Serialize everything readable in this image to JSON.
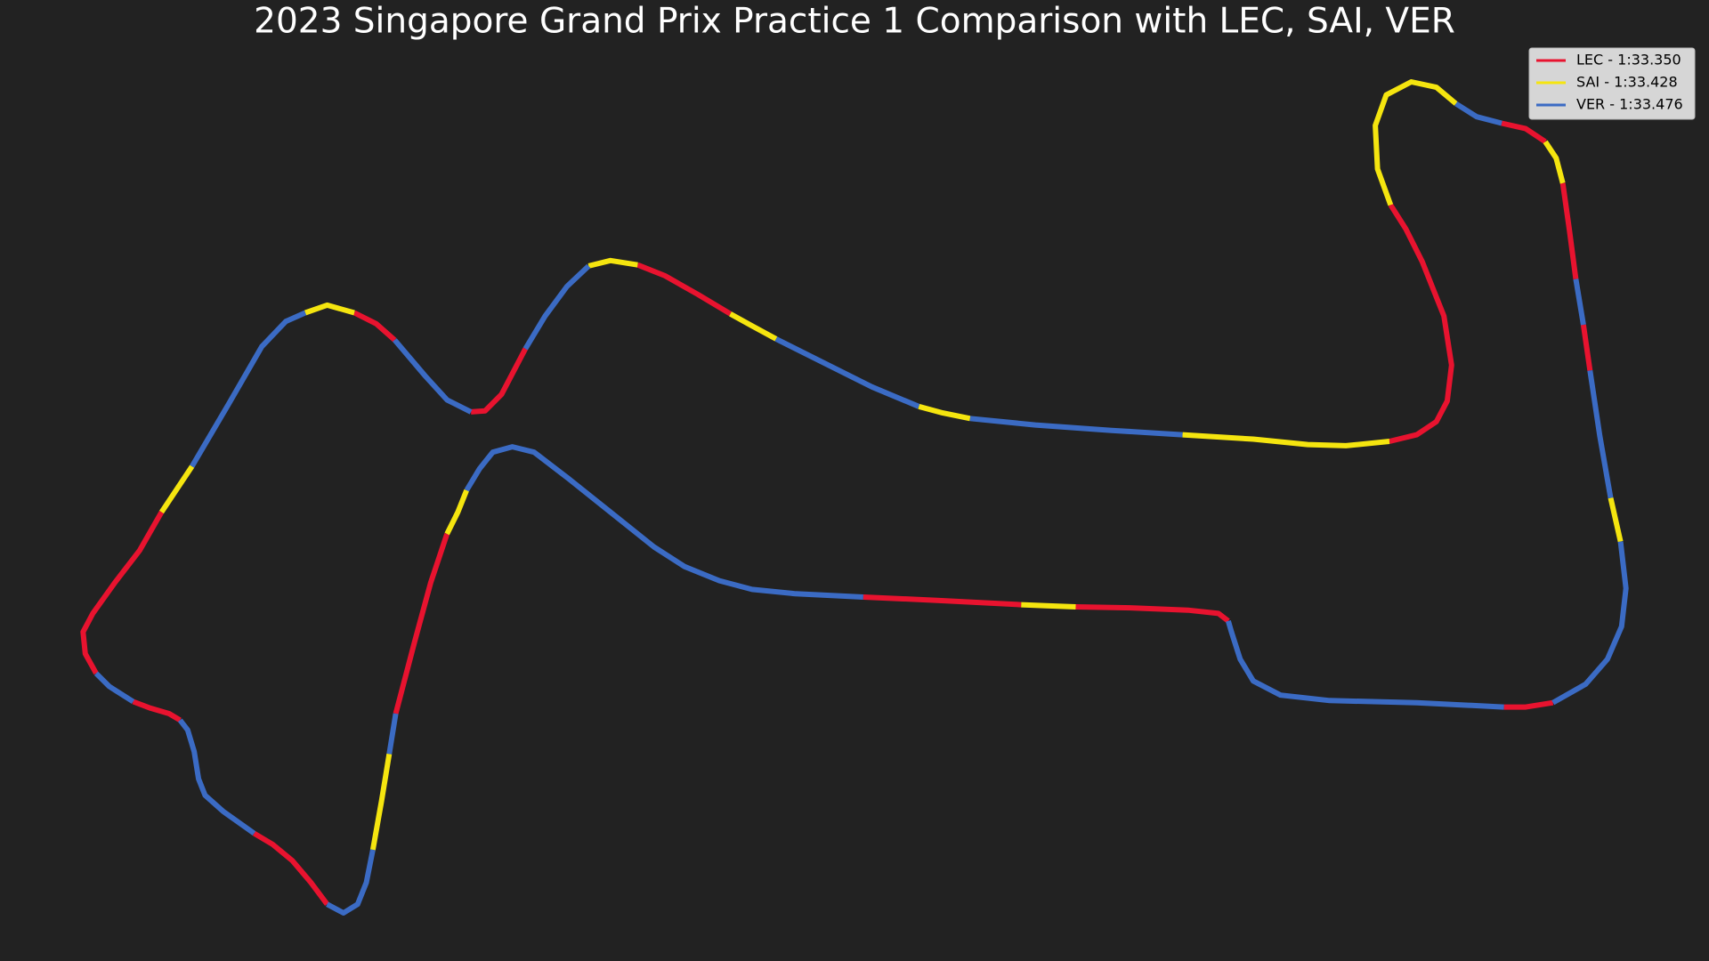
{
  "chart_data": {
    "type": "track",
    "title": "2023 Singapore Grand Prix Practice 1 Comparison with LEC, SAI, VER",
    "legend": "upper right",
    "series": [
      {
        "name": "LEC - 1:33.350",
        "color": "#e8132f",
        "segments": [
          {
            "x": [
              88,
              78,
              76,
              85,
              105,
              128,
              148
            ],
            "y": [
              618,
              600,
              580,
              563,
              535,
              505,
              470
            ]
          },
          {
            "x": [
              325,
              345,
              362
            ],
            "y": [
              287,
              297,
              312
            ]
          },
          {
            "x": [
              432,
              445,
              460,
              482
            ],
            "y": [
              378,
              377,
              362,
              320
            ]
          },
          {
            "x": [
              585,
              610,
              640,
              670
            ],
            "y": [
              243,
              253,
              270,
              288
            ]
          },
          {
            "x": [
              1275,
              1300,
              1318,
              1328,
              1332,
              1325,
              1305,
              1290,
              1276
            ],
            "y": [
              405,
              399,
              387,
              368,
              335,
              290,
              240,
              210,
              188
            ]
          },
          {
            "x": [
              1378,
              1400,
              1418
            ],
            "y": [
              113,
              118,
              130
            ]
          },
          {
            "x": [
              1434,
              1440,
              1446
            ],
            "y": [
              168,
              210,
              256
            ]
          },
          {
            "x": [
              1453,
              1459
            ],
            "y": [
              298,
              340
            ]
          },
          {
            "x": [
              1425,
              1400,
              1380
            ],
            "y": [
              645,
              649,
              649
            ]
          },
          {
            "x": [
              1127,
              1118,
              1090,
              1040,
              987
            ],
            "y": [
              570,
              563,
              560,
              558,
              557
            ]
          },
          {
            "x": [
              937,
              860,
              792
            ],
            "y": [
              555,
              551,
              548
            ]
          },
          {
            "x": [
              410,
              395,
              380,
              363
            ],
            "y": [
              490,
              535,
              590,
              655
            ]
          },
          {
            "x": [
              300,
              285,
              268,
              250,
              233
            ],
            "y": [
              830,
              810,
              790,
              775,
              765
            ]
          },
          {
            "x": [
              165,
              155,
              138,
              122
            ],
            "y": [
              661,
              655,
              650,
              644
            ]
          }
        ]
      },
      {
        "name": "SAI - 1:33.428",
        "color": "#f5e50f",
        "segments": [
          {
            "x": [
              148,
              176
            ],
            "y": [
              470,
              428
            ]
          },
          {
            "x": [
              280,
              300,
              325
            ],
            "y": [
              287,
              280,
              287
            ]
          },
          {
            "x": [
              540,
              560,
              585
            ],
            "y": [
              244,
              239,
              243
            ]
          },
          {
            "x": [
              670,
              690,
              712
            ],
            "y": [
              288,
              299,
              311
            ]
          },
          {
            "x": [
              843,
              865,
              890
            ],
            "y": [
              373,
              379,
              384
            ]
          },
          {
            "x": [
              1085,
              1150,
              1200,
              1235,
              1275
            ],
            "y": [
              399,
              403,
              408,
              409,
              405
            ]
          },
          {
            "x": [
              1276,
              1264,
              1262,
              1272,
              1295,
              1318,
              1336
            ],
            "y": [
              188,
              155,
              115,
              87,
              75,
              80,
              95
            ]
          },
          {
            "x": [
              1418,
              1428,
              1434
            ],
            "y": [
              130,
              145,
              168
            ]
          },
          {
            "x": [
              1478,
              1487
            ],
            "y": [
              457,
              497
            ]
          },
          {
            "x": [
              987,
              960,
              937
            ],
            "y": [
              557,
              556,
              555
            ]
          },
          {
            "x": [
              428,
              420,
              410
            ],
            "y": [
              450,
              470,
              490
            ]
          },
          {
            "x": [
              357,
              350,
              342
            ],
            "y": [
              692,
              735,
              780
            ]
          }
        ]
      },
      {
        "name": "VER - 1:33.476",
        "color": "#3b6bc4",
        "segments": [
          {
            "x": [
              176,
              210,
              240,
              262,
              280
            ],
            "y": [
              428,
              370,
              318,
              295,
              287
            ]
          },
          {
            "x": [
              362,
              390,
              410,
              432
            ],
            "y": [
              312,
              345,
              367,
              378
            ]
          },
          {
            "x": [
              482,
              500,
              520,
              540
            ],
            "y": [
              320,
              290,
              263,
              244
            ]
          },
          {
            "x": [
              712,
              760,
              800,
              843
            ],
            "y": [
              311,
              335,
              355,
              373
            ]
          },
          {
            "x": [
              890,
              950,
              1020,
              1085
            ],
            "y": [
              384,
              390,
              395,
              399
            ]
          },
          {
            "x": [
              1336,
              1355,
              1378
            ],
            "y": [
              95,
              107,
              113
            ]
          },
          {
            "x": [
              1446,
              1453
            ],
            "y": [
              256,
              298
            ]
          },
          {
            "x": [
              1459,
              1468,
              1478
            ],
            "y": [
              340,
              400,
              457
            ]
          },
          {
            "x": [
              1487,
              1492,
              1488,
              1475,
              1455,
              1425
            ],
            "y": [
              497,
              540,
              575,
              605,
              628,
              645
            ]
          },
          {
            "x": [
              1380,
              1300,
              1220,
              1175,
              1150,
              1138,
              1130,
              1127
            ],
            "y": [
              649,
              645,
              643,
              638,
              625,
              605,
              580,
              570
            ]
          },
          {
            "x": [
              792,
              730,
              690,
              660,
              628,
              600,
              560,
              520,
              490,
              470,
              452,
              440,
              428
            ],
            "y": [
              548,
              545,
              541,
              533,
              520,
              502,
              470,
              438,
              415,
              410,
              415,
              430,
              450
            ]
          },
          {
            "x": [
              363,
              357
            ],
            "y": [
              655,
              692
            ]
          },
          {
            "x": [
              342,
              336,
              328,
              315,
              300
            ],
            "y": [
              780,
              810,
              830,
              838,
              830
            ]
          },
          {
            "x": [
              233,
              205,
              188,
              182,
              178,
              172,
              165
            ],
            "y": [
              765,
              745,
              730,
              715,
              690,
              670,
              661
            ]
          },
          {
            "x": [
              122,
              100,
              88
            ],
            "y": [
              644,
              630,
              618
            ]
          }
        ]
      }
    ]
  }
}
